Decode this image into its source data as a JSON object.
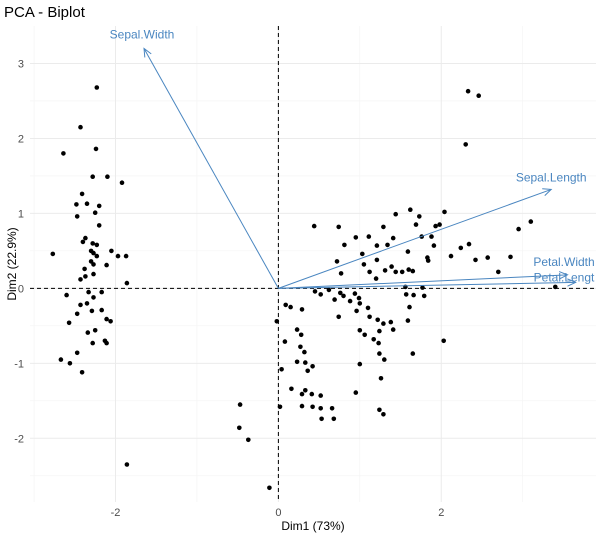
{
  "chart_data": {
    "type": "scatter",
    "title": "PCA - Biplot",
    "xlabel": "Dim1 (73%)",
    "ylabel": "Dim2 (22.9%)",
    "xlim": [
      -3.05,
      3.9
    ],
    "ylim": [
      -2.85,
      3.5
    ],
    "x_major_ticks": [
      -2,
      0,
      2
    ],
    "x_minor_ticks": [
      -3,
      -1,
      1,
      3
    ],
    "y_major_ticks": [
      -2,
      -1,
      0,
      1,
      2,
      3
    ],
    "y_minor_ticks": [
      -2.5,
      -1.5,
      -0.5,
      0.5,
      1.5,
      2.5
    ],
    "x_tick_labels": [
      "-2",
      "0",
      "2"
    ],
    "y_tick_labels": [
      "-2",
      "-1",
      "0",
      "1",
      "2",
      "3"
    ],
    "grid": true,
    "reference_lines": {
      "x": 0,
      "y": 0,
      "style": "dashed"
    },
    "point_color": "#000000",
    "arrow_color": "#4a86c0",
    "variables": [
      {
        "name": "Sepal.Width",
        "label": "Sepal.Width",
        "x": -1.65,
        "y": 3.2
      },
      {
        "name": "Sepal.Length",
        "label": "Sepal.Length",
        "x": 3.35,
        "y": 1.32
      },
      {
        "name": "Petal.Width",
        "label": "Petal.Width",
        "x": 3.55,
        "y": 0.18
      },
      {
        "name": "Petal.Length",
        "label": "Petal.Lengt",
        "x": 3.65,
        "y": 0.08
      }
    ],
    "points": [
      [
        -2.23,
        2.68
      ],
      [
        -2.43,
        2.15
      ],
      [
        -2.64,
        1.8
      ],
      [
        -2.24,
        1.86
      ],
      [
        -2.1,
        1.49
      ],
      [
        -1.92,
        1.41
      ],
      [
        -2.28,
        1.49
      ],
      [
        -2.41,
        1.26
      ],
      [
        -2.35,
        1.13
      ],
      [
        -2.48,
        1.12
      ],
      [
        -2.2,
        1.1
      ],
      [
        -2.25,
        1.01
      ],
      [
        -2.47,
        0.96
      ],
      [
        -2.2,
        0.84
      ],
      [
        -2.37,
        0.67
      ],
      [
        -2.28,
        0.6
      ],
      [
        -2.4,
        0.62
      ],
      [
        -2.23,
        0.58
      ],
      [
        -2.3,
        0.5
      ],
      [
        -2.27,
        0.47
      ],
      [
        -2.23,
        0.43
      ],
      [
        -2.05,
        0.5
      ],
      [
        -1.97,
        0.43
      ],
      [
        -1.87,
        0.43
      ],
      [
        -2.77,
        0.46
      ],
      [
        -2.3,
        0.36
      ],
      [
        -2.27,
        0.32
      ],
      [
        -2.11,
        0.31
      ],
      [
        -2.38,
        0.26
      ],
      [
        -2.27,
        0.19
      ],
      [
        -2.37,
        0.16
      ],
      [
        -2.43,
        0.12
      ],
      [
        -1.86,
        0.07
      ],
      [
        -2.33,
        -0.05
      ],
      [
        -2.17,
        -0.05
      ],
      [
        -2.6,
        -0.09
      ],
      [
        -2.27,
        -0.12
      ],
      [
        -2.35,
        -0.2
      ],
      [
        -2.43,
        -0.22
      ],
      [
        -2.17,
        -0.29
      ],
      [
        -2.29,
        -0.3
      ],
      [
        -2.47,
        -0.34
      ],
      [
        -2.57,
        -0.46
      ],
      [
        -2.11,
        -0.41
      ],
      [
        -2.06,
        -0.44
      ],
      [
        -2.34,
        -0.59
      ],
      [
        -2.25,
        -0.56
      ],
      [
        -2.28,
        -0.73
      ],
      [
        -2.13,
        -0.7
      ],
      [
        -2.11,
        -0.73
      ],
      [
        -2.47,
        -0.86
      ],
      [
        -2.67,
        -0.95
      ],
      [
        -2.56,
        -1.0
      ],
      [
        -2.41,
        -1.12
      ],
      [
        -1.86,
        -2.35
      ],
      [
        -0.47,
        -1.55
      ],
      [
        -0.48,
        -1.86
      ],
      [
        -0.37,
        -2.02
      ],
      [
        -0.11,
        -2.66
      ],
      [
        -0.02,
        -0.44
      ],
      [
        0.09,
        -0.22
      ],
      [
        0.15,
        -0.25
      ],
      [
        0.29,
        -0.28
      ],
      [
        0.23,
        -0.55
      ],
      [
        0.28,
        -0.62
      ],
      [
        0.08,
        -0.71
      ],
      [
        0.27,
        -0.78
      ],
      [
        0.32,
        -0.85
      ],
      [
        0.23,
        -0.98
      ],
      [
        0.33,
        -0.99
      ],
      [
        0.42,
        -1.04
      ],
      [
        0.04,
        -1.08
      ],
      [
        0.36,
        -1.1
      ],
      [
        0.16,
        -1.34
      ],
      [
        0.33,
        -1.36
      ],
      [
        0.29,
        -1.41
      ],
      [
        0.41,
        -1.41
      ],
      [
        0.52,
        -1.43
      ],
      [
        0.29,
        -1.57
      ],
      [
        0.02,
        -1.58
      ],
      [
        0.42,
        -1.58
      ],
      [
        0.52,
        -1.6
      ],
      [
        0.66,
        -1.6
      ],
      [
        0.53,
        -1.74
      ],
      [
        0.68,
        -1.74
      ],
      [
        0.45,
        -0.04
      ],
      [
        0.52,
        -0.08
      ],
      [
        0.62,
        -0.02
      ],
      [
        0.76,
        -0.06
      ],
      [
        0.69,
        -0.15
      ],
      [
        0.8,
        -0.1
      ],
      [
        0.74,
        -0.38
      ],
      [
        0.88,
        -0.17
      ],
      [
        0.94,
        -0.07
      ],
      [
        0.99,
        -0.13
      ],
      [
        1.0,
        -0.2
      ],
      [
        0.96,
        -0.3
      ],
      [
        1.1,
        -0.26
      ],
      [
        1.12,
        -0.38
      ],
      [
        1.22,
        -0.42
      ],
      [
        1.0,
        -0.56
      ],
      [
        1.06,
        -0.62
      ],
      [
        1.24,
        -0.57
      ],
      [
        1.29,
        -0.47
      ],
      [
        1.38,
        -0.45
      ],
      [
        1.17,
        -0.68
      ],
      [
        1.23,
        -0.73
      ],
      [
        1.24,
        -0.87
      ],
      [
        1.3,
        -0.95
      ],
      [
        1.0,
        -1.01
      ],
      [
        1.26,
        -1.2
      ],
      [
        0.95,
        -1.39
      ],
      [
        1.24,
        -1.62
      ],
      [
        1.29,
        -1.68
      ],
      [
        1.41,
        -0.55
      ],
      [
        1.59,
        -0.43
      ],
      [
        1.61,
        -0.25
      ],
      [
        1.57,
        -0.08
      ],
      [
        1.56,
        0.02
      ],
      [
        1.66,
        -0.09
      ],
      [
        1.77,
        0.01
      ],
      [
        1.79,
        -0.1
      ],
      [
        1.65,
        -0.87
      ],
      [
        2.03,
        -0.7
      ],
      [
        0.44,
        0.83
      ],
      [
        0.72,
        0.36
      ],
      [
        0.77,
        0.2
      ],
      [
        0.74,
        0.82
      ],
      [
        0.81,
        0.58
      ],
      [
        0.95,
        0.68
      ],
      [
        1.03,
        0.46
      ],
      [
        1.05,
        0.32
      ],
      [
        1.12,
        0.22
      ],
      [
        1.2,
        0.13
      ],
      [
        1.21,
        0.38
      ],
      [
        1.21,
        0.57
      ],
      [
        1.29,
        0.82
      ],
      [
        1.31,
        0.24
      ],
      [
        1.39,
        0.29
      ],
      [
        1.44,
        0.22
      ],
      [
        1.44,
        0.99
      ],
      [
        1.52,
        0.22
      ],
      [
        1.6,
        0.25
      ],
      [
        1.62,
        1.05
      ],
      [
        1.69,
        0.85
      ],
      [
        1.73,
        0.96
      ],
      [
        1.76,
        0.69
      ],
      [
        1.83,
        0.41
      ],
      [
        1.88,
        0.69
      ],
      [
        1.93,
        0.83
      ],
      [
        2.04,
        1.02
      ],
      [
        2.12,
        0.43
      ],
      [
        2.24,
        0.54
      ],
      [
        2.34,
        0.59
      ],
      [
        2.42,
        0.38
      ],
      [
        2.57,
        0.41
      ],
      [
        2.7,
        0.22
      ],
      [
        2.85,
        0.42
      ],
      [
        3.1,
        0.89
      ],
      [
        2.95,
        0.79
      ],
      [
        3.4,
        0.02
      ],
      [
        2.3,
        1.92
      ],
      [
        2.33,
        2.63
      ],
      [
        2.46,
        2.57
      ],
      [
        1.84,
        0.37
      ],
      [
        1.91,
        0.57
      ],
      [
        1.65,
        0.23
      ],
      [
        1.41,
        0.67
      ],
      [
        1.98,
        0.85
      ],
      [
        1.34,
        0.58
      ],
      [
        1.11,
        0.69
      ],
      [
        1.59,
        0.49
      ]
    ]
  }
}
